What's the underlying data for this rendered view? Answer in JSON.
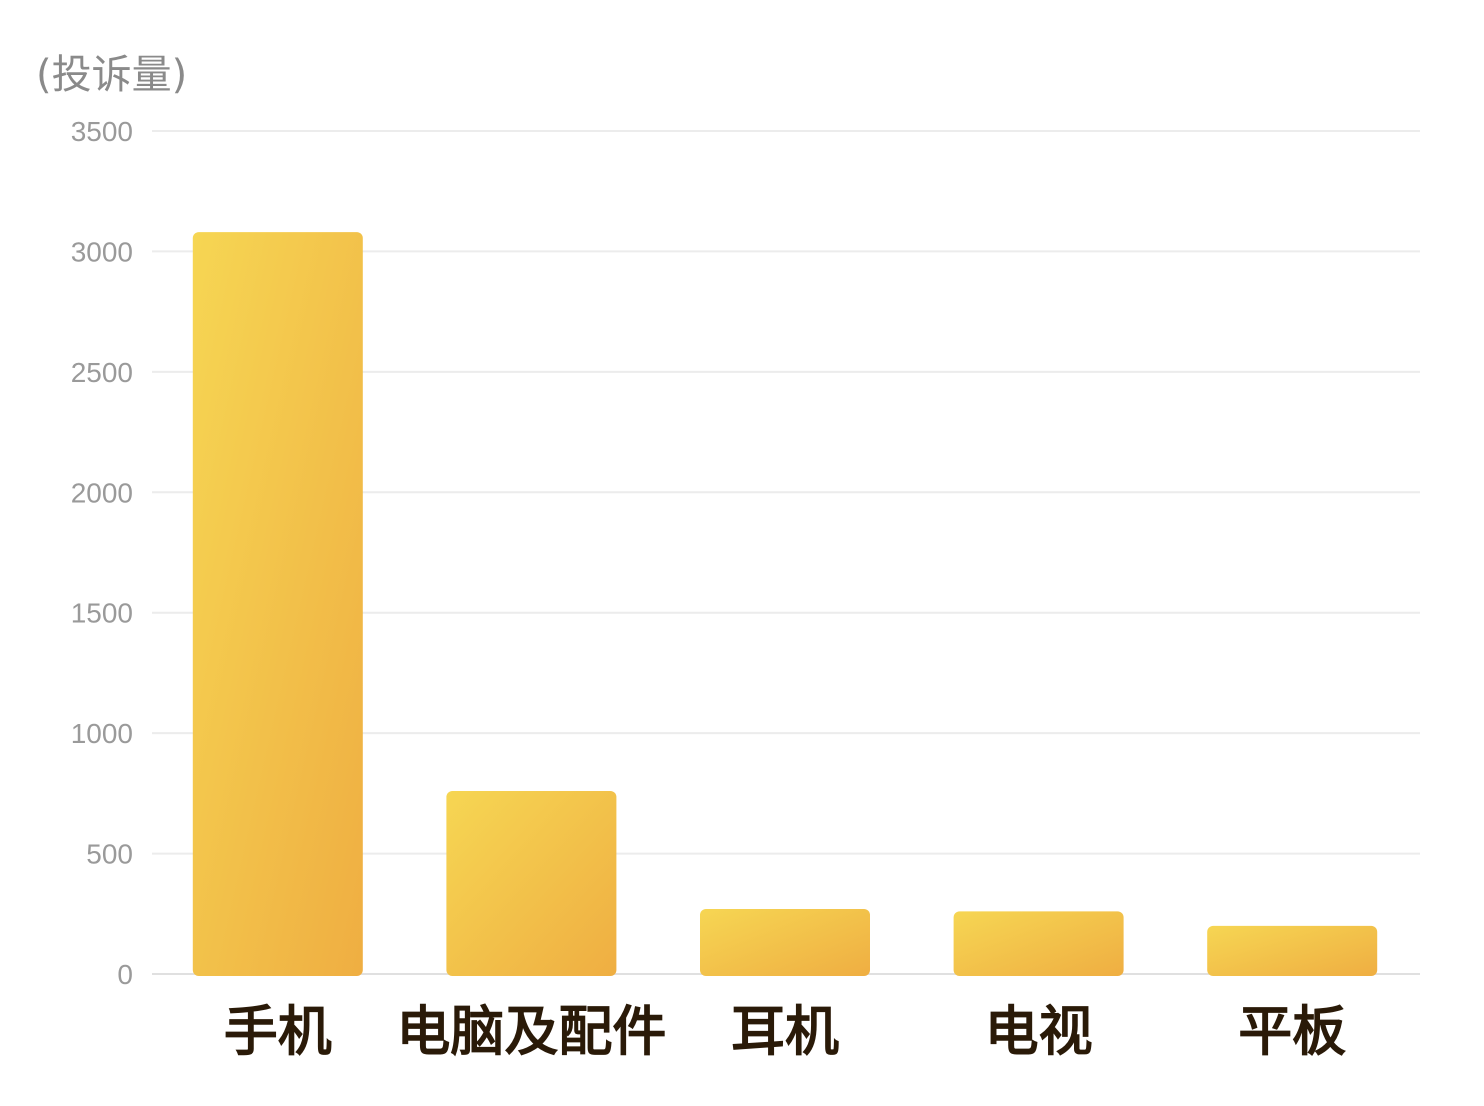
{
  "chart_data": {
    "type": "bar",
    "title": "",
    "xlabel": "",
    "ylabel": "(投诉量)",
    "categories": [
      "手机",
      "电脑及配件",
      "耳机",
      "电视",
      "平板"
    ],
    "series": [
      {
        "values": [
          3080,
          760,
          270,
          260,
          200
        ]
      }
    ],
    "ylim": [
      0,
      3500
    ],
    "yticks": [
      0,
      500,
      1000,
      1500,
      2000,
      2500,
      3000,
      3500
    ],
    "grid": true,
    "legend": "none",
    "colors": {
      "bar_top": "#f6d653",
      "bar_bottom": "#efae42",
      "grid": "#ececec",
      "tick_text": "#9a9a9a",
      "category_text": "#2a1a08"
    }
  }
}
